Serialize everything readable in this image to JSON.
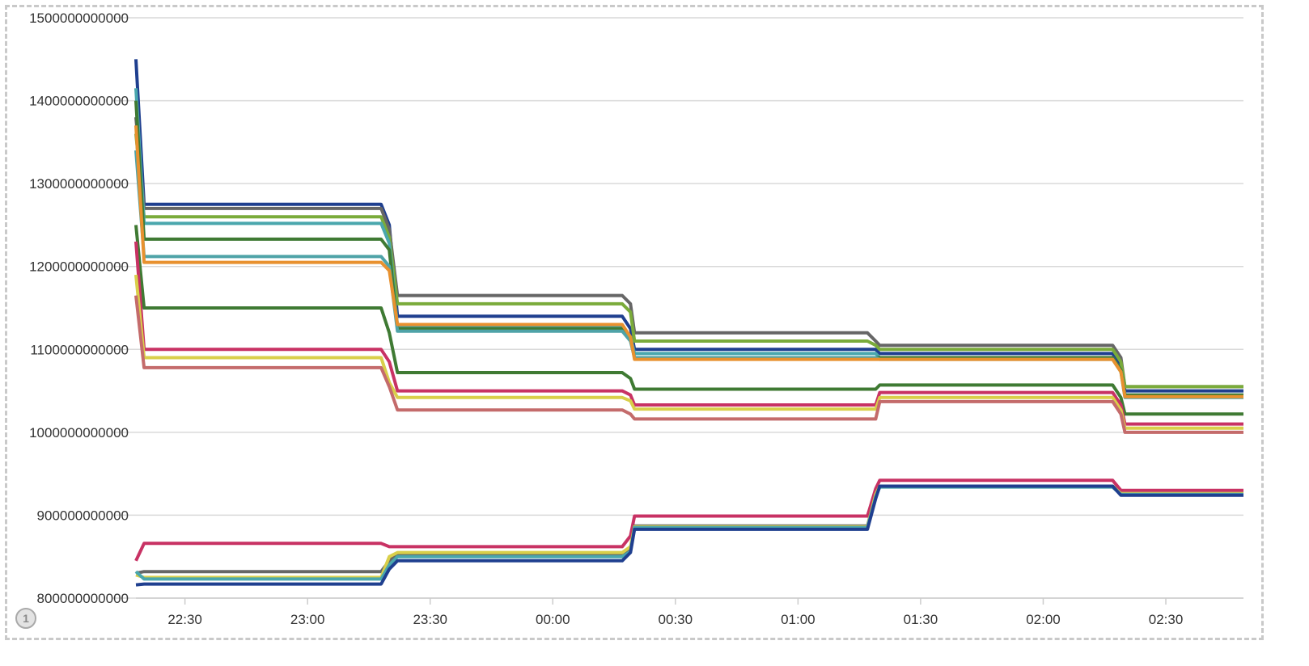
{
  "chart_data": {
    "type": "line",
    "title": "",
    "xlabel": "",
    "ylabel": "",
    "ylim": [
      800000000000,
      1500000000000
    ],
    "y_ticks": [
      800000000000,
      900000000000,
      1000000000000,
      1100000000000,
      1200000000000,
      1300000000000,
      1400000000000,
      1500000000000
    ],
    "y_tick_labels": [
      "800000000000",
      "900000000000",
      "1000000000000",
      "1100000000000",
      "1200000000000",
      "1300000000000",
      "1400000000000",
      "1500000000000"
    ],
    "xlim": [
      "22:18",
      "02:49"
    ],
    "x_tick_labels": [
      "22:30",
      "23:00",
      "23:30",
      "00:00",
      "00:30",
      "01:00",
      "01:30",
      "02:00",
      "02:30"
    ],
    "x": [
      "22:18",
      "22:20",
      "23:18",
      "23:20",
      "23:22",
      "00:17",
      "00:19",
      "00:20",
      "01:17",
      "01:19",
      "01:20",
      "01:22",
      "02:17",
      "02:19",
      "02:20",
      "02:49"
    ],
    "grid": true,
    "legend": "none",
    "series": [
      {
        "color": "#1f3f8f",
        "values": [
          1450000000000,
          1275000000000,
          1275000000000,
          1250000000000,
          1140000000000,
          1140000000000,
          1125000000000,
          1100000000000,
          1100000000000,
          1100000000000,
          1095000000000,
          1095000000000,
          1095000000000,
          1080000000000,
          1050000000000,
          1050000000000
        ]
      },
      {
        "color": "#666666",
        "values": [
          1380000000000,
          1270000000000,
          1270000000000,
          1245000000000,
          1165000000000,
          1165000000000,
          1155000000000,
          1120000000000,
          1120000000000,
          1110000000000,
          1105000000000,
          1105000000000,
          1105000000000,
          1090000000000,
          1055000000000,
          1055000000000
        ]
      },
      {
        "color": "#7aab3a",
        "values": [
          1360000000000,
          1260000000000,
          1260000000000,
          1235000000000,
          1155000000000,
          1155000000000,
          1145000000000,
          1110000000000,
          1110000000000,
          1105000000000,
          1100000000000,
          1100000000000,
          1100000000000,
          1085000000000,
          1055000000000,
          1055000000000
        ]
      },
      {
        "color": "#4aa7ad",
        "values": [
          1415000000000,
          1252000000000,
          1252000000000,
          1228000000000,
          1128000000000,
          1128000000000,
          1115000000000,
          1095000000000,
          1095000000000,
          1095000000000,
          1090000000000,
          1090000000000,
          1090000000000,
          1075000000000,
          1045000000000,
          1045000000000
        ]
      },
      {
        "color": "#3f7a33",
        "values": [
          1400000000000,
          1233000000000,
          1233000000000,
          1220000000000,
          1125000000000,
          1125000000000,
          1112000000000,
          1090000000000,
          1090000000000,
          1090000000000,
          1090000000000,
          1090000000000,
          1090000000000,
          1075000000000,
          1045000000000,
          1045000000000
        ]
      },
      {
        "color": "#4fa3a8",
        "values": [
          1340000000000,
          1212000000000,
          1212000000000,
          1200000000000,
          1122000000000,
          1122000000000,
          1110000000000,
          1090000000000,
          1090000000000,
          1090000000000,
          1088000000000,
          1088000000000,
          1088000000000,
          1073000000000,
          1042000000000,
          1042000000000
        ]
      },
      {
        "color": "#e8912f",
        "values": [
          1370000000000,
          1205000000000,
          1205000000000,
          1195000000000,
          1130000000000,
          1130000000000,
          1115000000000,
          1088000000000,
          1088000000000,
          1088000000000,
          1088000000000,
          1088000000000,
          1088000000000,
          1073000000000,
          1043000000000,
          1043000000000
        ]
      },
      {
        "color": "#3f7a33",
        "values": [
          1250000000000,
          1150000000000,
          1150000000000,
          1120000000000,
          1072000000000,
          1072000000000,
          1065000000000,
          1052000000000,
          1052000000000,
          1052000000000,
          1057000000000,
          1057000000000,
          1057000000000,
          1042000000000,
          1022000000000,
          1022000000000
        ]
      },
      {
        "color": "#c83264",
        "values": [
          1230000000000,
          1100000000000,
          1100000000000,
          1085000000000,
          1050000000000,
          1050000000000,
          1045000000000,
          1033000000000,
          1033000000000,
          1033000000000,
          1048000000000,
          1048000000000,
          1048000000000,
          1033000000000,
          1010000000000,
          1010000000000
        ]
      },
      {
        "color": "#d9cf4a",
        "values": [
          1190000000000,
          1090000000000,
          1090000000000,
          1060000000000,
          1042000000000,
          1042000000000,
          1038000000000,
          1028000000000,
          1028000000000,
          1028000000000,
          1042000000000,
          1042000000000,
          1042000000000,
          1027000000000,
          1005000000000,
          1005000000000
        ]
      },
      {
        "color": "#c46b6b",
        "values": [
          1165000000000,
          1078000000000,
          1078000000000,
          1055000000000,
          1027000000000,
          1027000000000,
          1022000000000,
          1016000000000,
          1016000000000,
          1016000000000,
          1037000000000,
          1037000000000,
          1037000000000,
          1022000000000,
          1000000000000,
          1000000000000
        ]
      },
      {
        "color": "#c83264",
        "values": [
          845000000000,
          866000000000,
          866000000000,
          862000000000,
          862000000000,
          862000000000,
          875000000000,
          899000000000,
          899000000000,
          932000000000,
          942000000000,
          942000000000,
          942000000000,
          930000000000,
          930000000000,
          930000000000
        ]
      },
      {
        "color": "#666666",
        "values": [
          830000000000,
          832000000000,
          832000000000,
          845000000000,
          852000000000,
          852000000000,
          860000000000,
          887000000000,
          887000000000,
          925000000000,
          935000000000,
          935000000000,
          935000000000,
          926000000000,
          926000000000,
          926000000000
        ]
      },
      {
        "color": "#d9cf4a",
        "values": [
          828000000000,
          825000000000,
          825000000000,
          850000000000,
          855000000000,
          855000000000,
          862000000000,
          886000000000,
          886000000000,
          925000000000,
          935000000000,
          935000000000,
          935000000000,
          926000000000,
          926000000000,
          926000000000
        ]
      },
      {
        "color": "#4aa7ad",
        "values": [
          832000000000,
          823000000000,
          823000000000,
          840000000000,
          850000000000,
          850000000000,
          856000000000,
          885000000000,
          885000000000,
          922000000000,
          934000000000,
          934000000000,
          934000000000,
          925000000000,
          925000000000,
          925000000000
        ]
      },
      {
        "color": "#1f3f8f",
        "values": [
          816000000000,
          817000000000,
          817000000000,
          835000000000,
          845000000000,
          845000000000,
          855000000000,
          883000000000,
          883000000000,
          920000000000,
          935000000000,
          935000000000,
          935000000000,
          924000000000,
          924000000000,
          924000000000
        ]
      }
    ]
  },
  "badge": {
    "label": "1"
  }
}
